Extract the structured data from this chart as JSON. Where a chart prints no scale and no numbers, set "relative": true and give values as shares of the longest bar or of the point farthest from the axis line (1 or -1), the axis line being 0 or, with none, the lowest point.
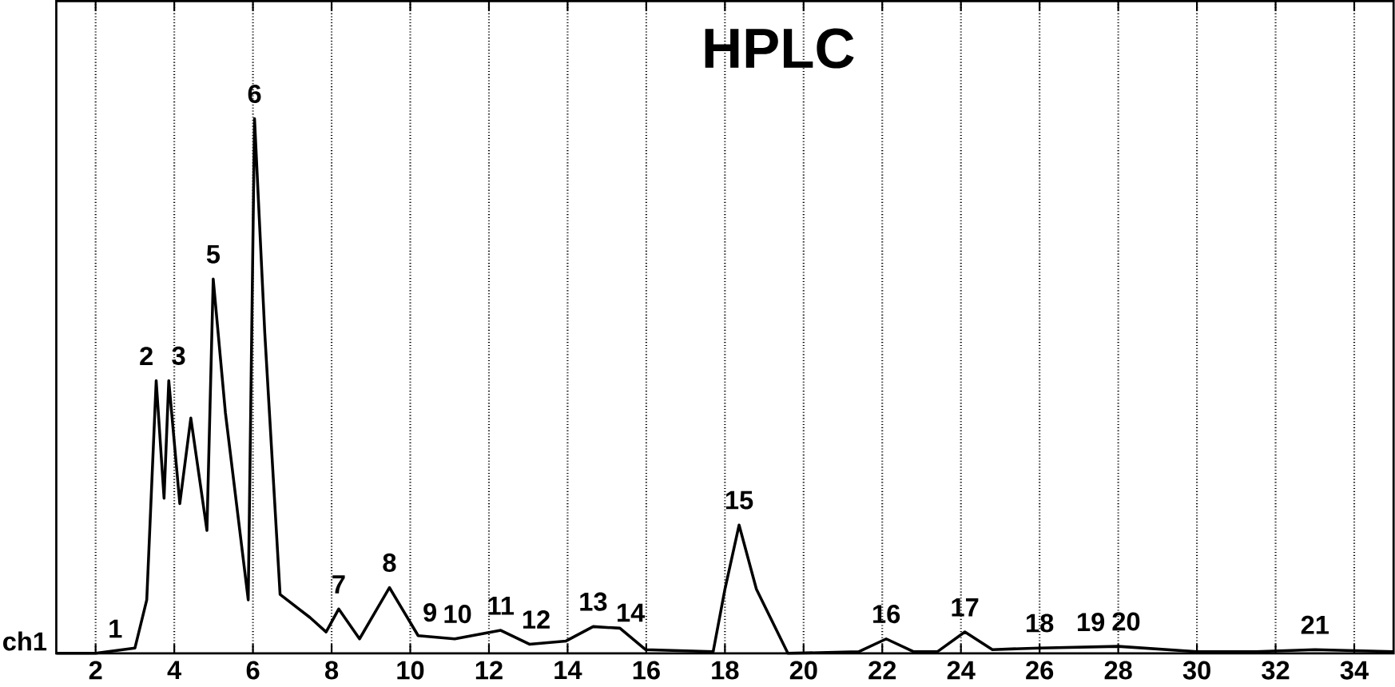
{
  "chart_data": {
    "type": "line",
    "title": "HPLC",
    "relative": true,
    "grid": "x",
    "xlim": [
      1,
      35
    ],
    "xticks": [
      2,
      4,
      6,
      8,
      10,
      12,
      14,
      16,
      18,
      20,
      22,
      24,
      26,
      28,
      30,
      32,
      34
    ],
    "x": [
      1,
      2,
      3,
      3.3,
      3.54,
      3.74,
      3.86,
      4.14,
      4.42,
      4.83,
      4.99,
      5.3,
      5.88,
      6.04,
      6.3,
      6.69,
      7.45,
      7.86,
      8.18,
      8.71,
      9.47,
      10.2,
      11.13,
      12.3,
      13.03,
      13.96,
      14.65,
      15.33,
      15.98,
      17.7,
      18.0,
      18.36,
      18.8,
      19.6,
      21.4,
      22.1,
      22.8,
      23.4,
      24.1,
      24.8,
      26,
      28,
      30,
      31.5,
      33,
      35
    ],
    "series": [
      {
        "color": "#000000",
        "values": [
          0,
          0,
          0.01,
          0.1,
          0.51,
          0.29,
          0.51,
          0.28,
          0.44,
          0.23,
          0.7,
          0.45,
          0.1,
          1,
          0.6,
          0.11,
          0.067,
          0.04,
          0.083,
          0.027,
          0.123,
          0.033,
          0.027,
          0.043,
          0.017,
          0.023,
          0.05,
          0.047,
          0.007,
          0.003,
          0.12,
          0.24,
          0.12,
          0,
          0.003,
          0.027,
          0.003,
          0.003,
          0.04,
          0.007,
          0.01,
          0.013,
          0.003,
          0.003,
          0.007,
          0.003
        ]
      }
    ],
    "annotations": [
      {
        "text": "1",
        "x": 2.5,
        "y": 0
      },
      {
        "text": "2",
        "x": 3.54,
        "y": 0.51
      },
      {
        "text": "3",
        "x": 3.86,
        "y": 0.51
      },
      {
        "text": "5",
        "x": 4.99,
        "y": 0.7
      },
      {
        "text": "6",
        "x": 6.04,
        "y": 1
      },
      {
        "text": "7",
        "x": 8.18,
        "y": 0.083
      },
      {
        "text": "8",
        "x": 9.47,
        "y": 0.123
      },
      {
        "text": "9",
        "x": 10.5,
        "y": 0.03
      },
      {
        "text": "10",
        "x": 11.2,
        "y": 0.027
      },
      {
        "text": "11",
        "x": 12.3,
        "y": 0.043
      },
      {
        "text": "12",
        "x": 13.2,
        "y": 0.017
      },
      {
        "text": "13",
        "x": 14.65,
        "y": 0.05
      },
      {
        "text": "14",
        "x": 15.6,
        "y": 0.03
      },
      {
        "text": "15",
        "x": 18.36,
        "y": 0.24
      },
      {
        "text": "16",
        "x": 22.1,
        "y": 0.027
      },
      {
        "text": "17",
        "x": 24.1,
        "y": 0.04
      },
      {
        "text": "18",
        "x": 26,
        "y": 0.01
      },
      {
        "text": "19",
        "x": 27.3,
        "y": 0.012
      },
      {
        "text": "20",
        "x": 28.2,
        "y": 0.013
      },
      {
        "text": "21",
        "x": 33,
        "y": 0.007
      },
      "ch1"
    ]
  }
}
